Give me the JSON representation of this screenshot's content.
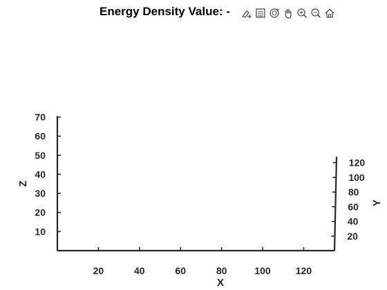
{
  "figure": {
    "title": "Energy Density Value: -"
  },
  "toolbar": {
    "buttons": [
      {
        "name": "edit-brush-icon"
      },
      {
        "name": "legend-icon"
      },
      {
        "name": "rotate-3d-icon"
      },
      {
        "name": "pan-hand-icon"
      },
      {
        "name": "zoom-in-icon"
      },
      {
        "name": "zoom-out-icon"
      },
      {
        "name": "home-icon"
      }
    ]
  },
  "chart_data": {
    "type": "scatter",
    "title": "Energy Density Value: -",
    "xlabel": "X",
    "ylabel": "Y",
    "zlabel": "Z",
    "x_ticks": [
      "20",
      "40",
      "60",
      "80",
      "100",
      "120"
    ],
    "y_ticks": [
      "20",
      "40",
      "60",
      "80",
      "100",
      "120"
    ],
    "z_ticks": [
      "10",
      "20",
      "30",
      "40",
      "50",
      "60",
      "70"
    ],
    "xlim": [
      0,
      135
    ],
    "ylim": [
      5,
      128
    ],
    "zlim": [
      0,
      72
    ],
    "grid": false,
    "series": []
  }
}
